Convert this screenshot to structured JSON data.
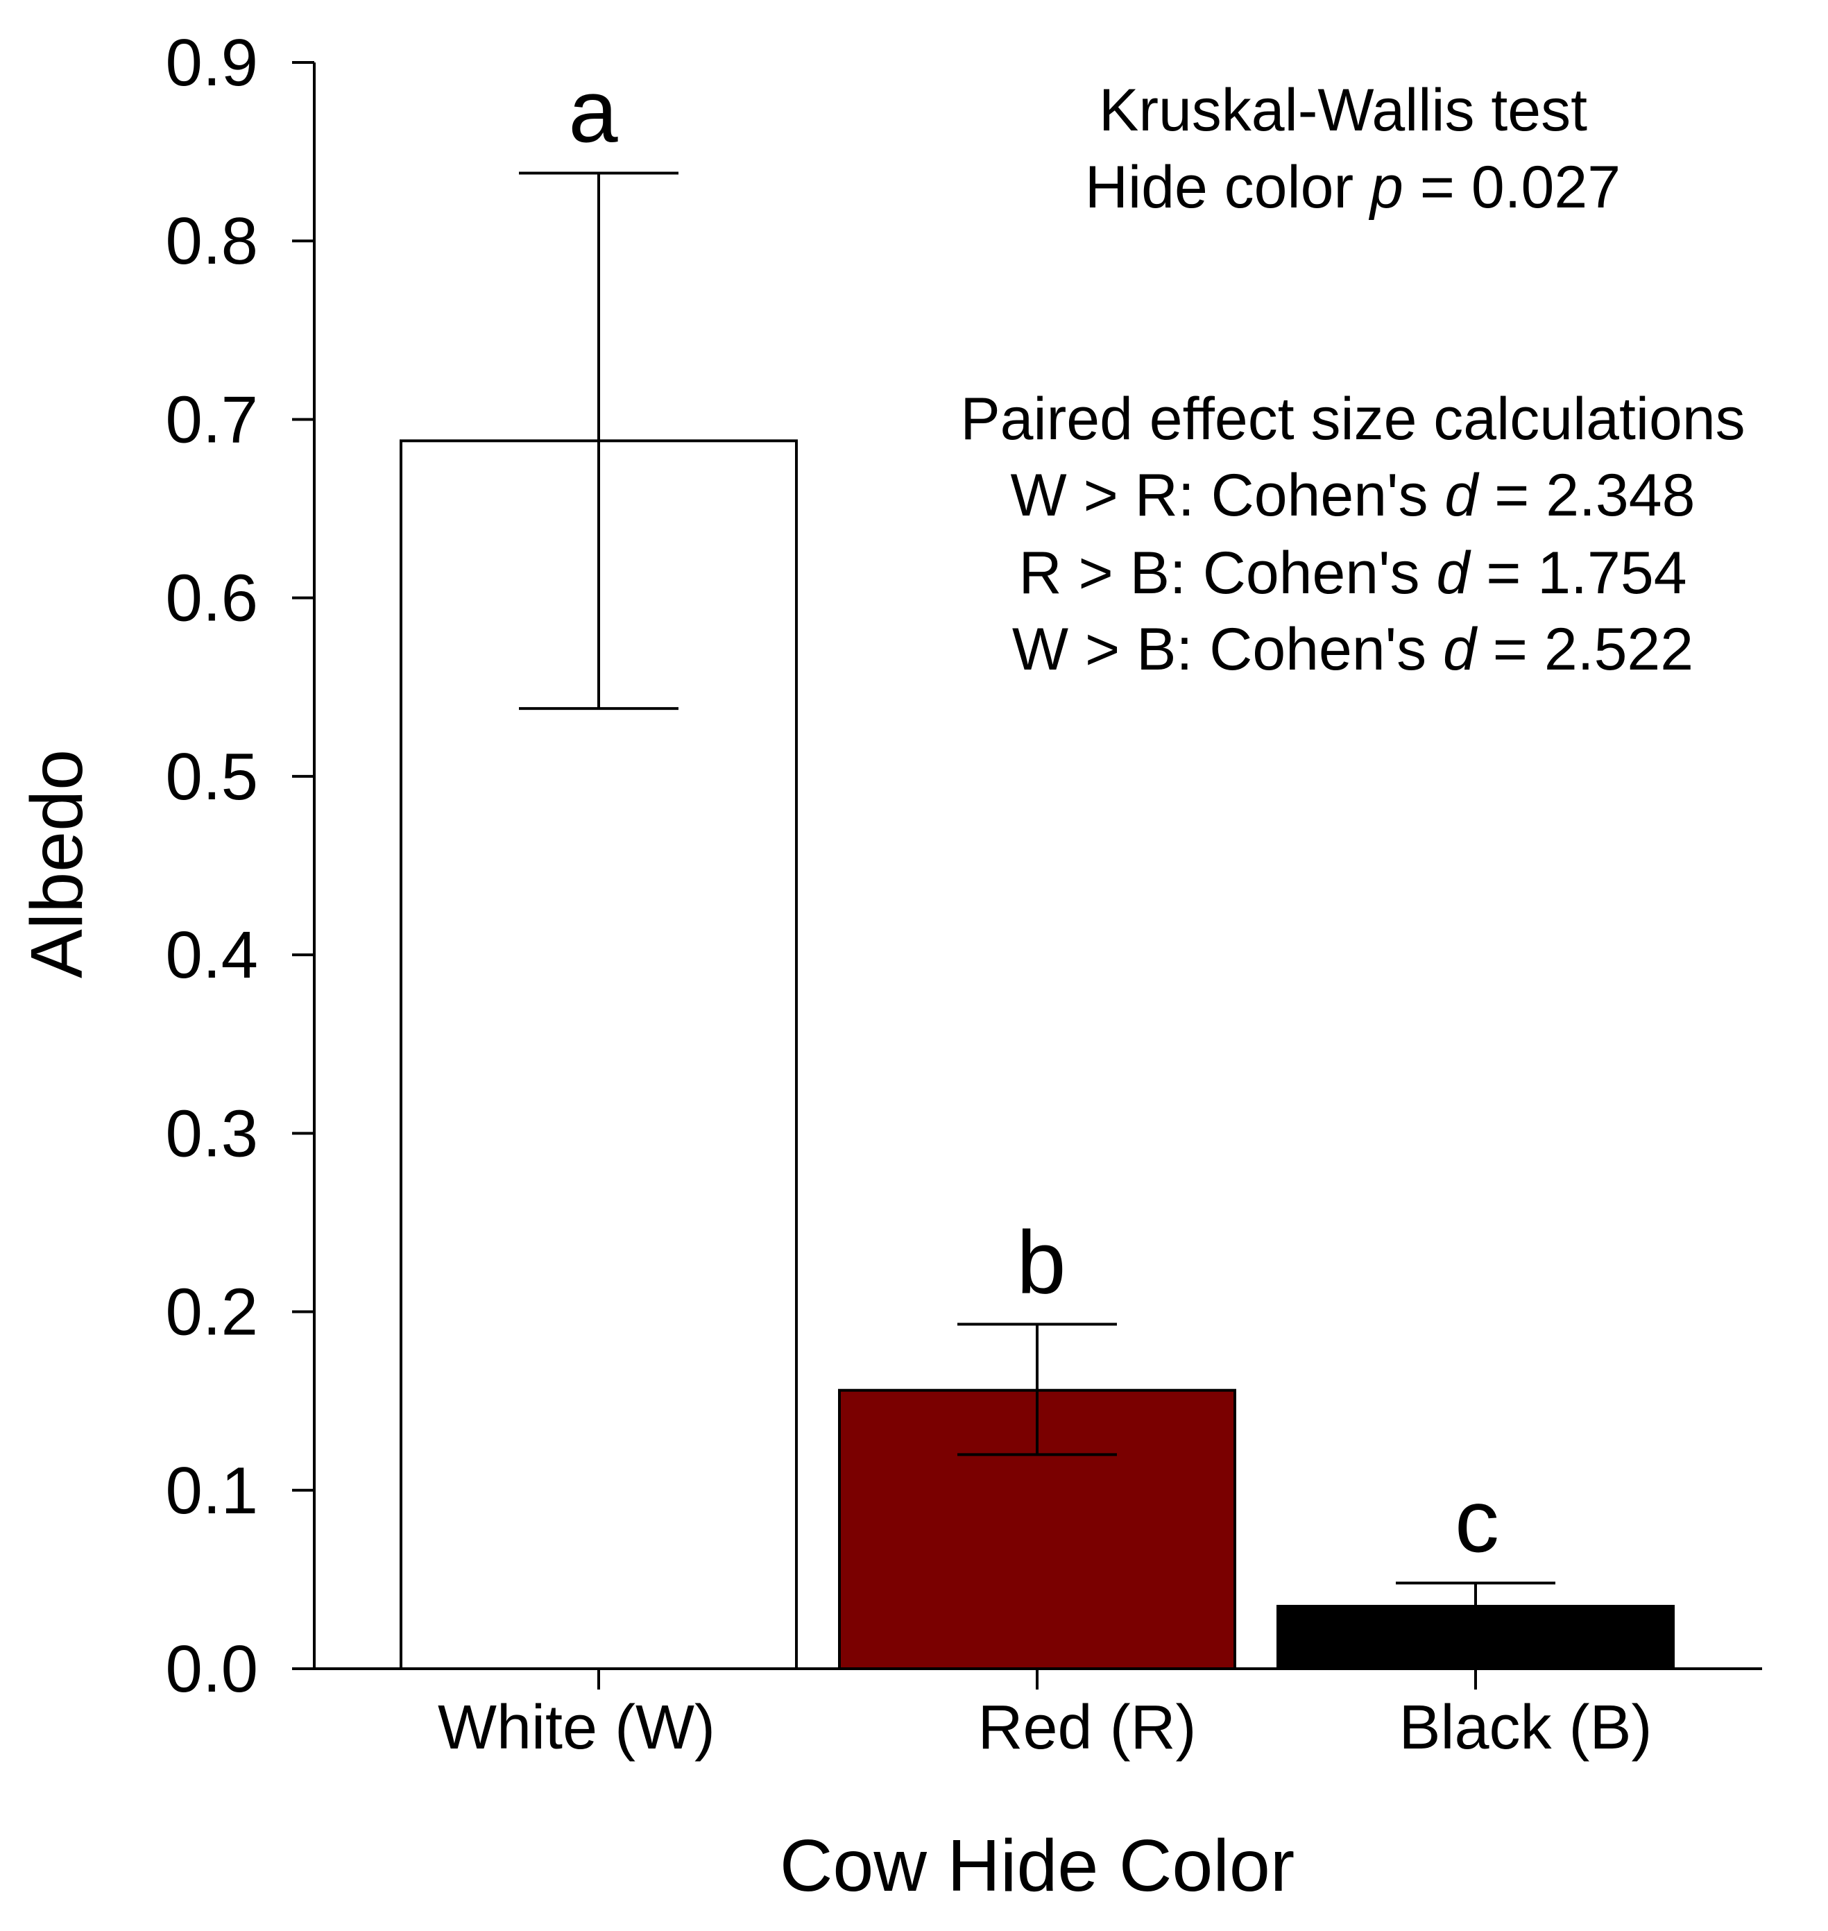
{
  "chart_data": {
    "type": "bar",
    "title": "",
    "xlabel": "Cow Hide Color",
    "ylabel": "Albedo",
    "ylim": [
      0,
      0.9
    ],
    "yticks": [
      "0.0",
      "0.1",
      "0.2",
      "0.3",
      "0.4",
      "0.5",
      "0.6",
      "0.7",
      "0.8",
      "0.9"
    ],
    "grid": false,
    "categories": [
      "White (W)",
      "Red (R)",
      "Black (B)"
    ],
    "values": [
      0.688,
      0.156,
      0.035
    ],
    "error_lower": [
      0.538,
      0.12,
      0.035
    ],
    "error_upper": [
      0.838,
      0.193,
      0.048
    ],
    "bar_colors": [
      "#ffffff",
      "#7a0000",
      "#000000"
    ],
    "significance_letters": [
      "a",
      "b",
      "c"
    ],
    "annotations": {
      "kruskal_title": "Kruskal-Wallis test",
      "kruskal_prefix": "Hide color ",
      "kruskal_var": "p",
      "kruskal_value": " = 0.027",
      "effect_title": "Paired effect size calculations",
      "effects": [
        {
          "prefix": "W > R: Cohen's ",
          "var": "d",
          "value": " = 2.348"
        },
        {
          "prefix": "R > B: Cohen's ",
          "var": "d",
          "value": " = 1.754"
        },
        {
          "prefix": "W > B: Cohen's ",
          "var": "d",
          "value": " = 2.522"
        }
      ]
    }
  }
}
